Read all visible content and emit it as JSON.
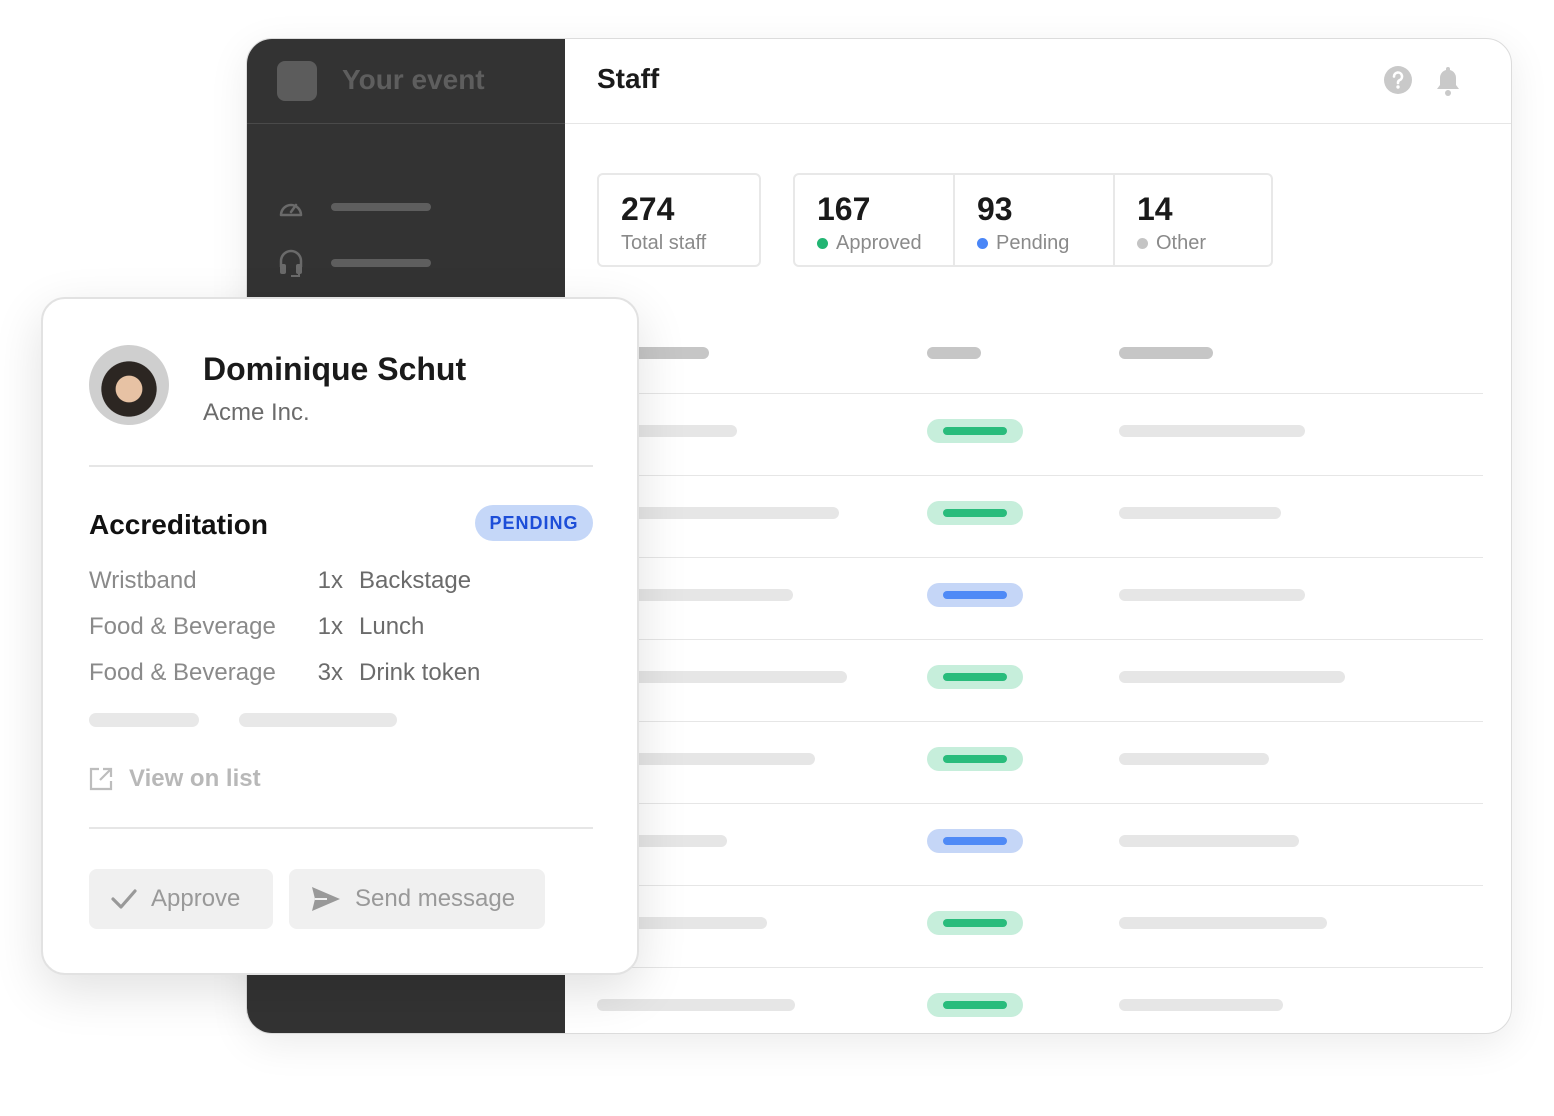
{
  "sidebar": {
    "event_name": "Your event",
    "nav_icons": [
      "gauge-icon",
      "headset-icon"
    ]
  },
  "header": {
    "title": "Staff",
    "icons": [
      "help-icon",
      "bell-icon"
    ]
  },
  "stats": [
    {
      "value": "274",
      "label": "Total staff"
    },
    {
      "value": "167",
      "label": "Approved",
      "color": "#22b573"
    },
    {
      "value": "93",
      "label": "Pending",
      "color": "#4a86f7"
    },
    {
      "value": "14",
      "label": "Other",
      "color": "#c4c4c4"
    }
  ],
  "table": {
    "row_statuses": [
      "approved",
      "approved",
      "pending",
      "approved",
      "approved",
      "pending",
      "approved",
      "approved"
    ]
  },
  "colors": {
    "approved_bar": "#29bc7c",
    "approved_bg": "#c6eedb",
    "pending_bar": "#4f8af6",
    "pending_bg": "#c5d6f7",
    "sidebar_bg": "#333333"
  },
  "profile": {
    "name": "Dominique Schut",
    "company": "Acme Inc.",
    "section_title": "Accreditation",
    "status_badge": "PENDING",
    "items": [
      {
        "category": "Wristband",
        "qty": "1x",
        "name": "Backstage"
      },
      {
        "category": "Food & Beverage",
        "qty": "1x",
        "name": "Lunch"
      },
      {
        "category": "Food & Beverage",
        "qty": "3x",
        "name": "Drink token"
      }
    ],
    "view_link": "View on list",
    "approve_label": "Approve",
    "message_label": "Send message"
  }
}
